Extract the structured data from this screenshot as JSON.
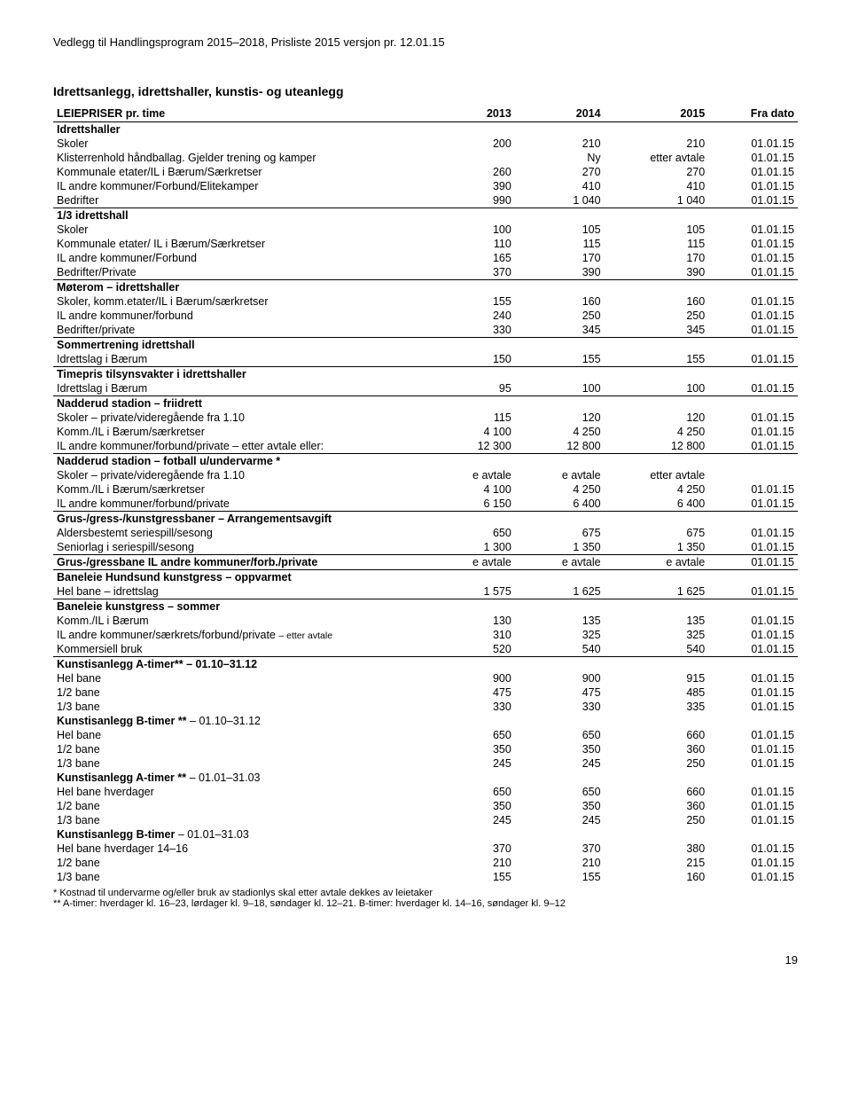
{
  "header": "Vedlegg til Handlingsprogram 2015–2018, Prisliste 2015 versjon pr. 12.01.15",
  "title": "Idrettsanlegg, idrettshaller, kunstis- og uteanlegg",
  "columns": {
    "c0": "LEIEPRISER pr. time",
    "c1": "2013",
    "c2": "2014",
    "c3": "2015",
    "c4": "Fra dato"
  },
  "groups": [
    {
      "header": "Idrettshaller",
      "rows": [
        {
          "label": "Skoler",
          "c1": "200",
          "c2": "210",
          "c3": "210",
          "d": "01.01.15"
        },
        {
          "label": "Klisterrenhold håndballag. Gjelder trening og kamper",
          "c1": "",
          "c2": "Ny",
          "c3": "etter avtale",
          "d": "01.01.15"
        },
        {
          "label": "Kommunale etater/IL i Bærum/Særkretser",
          "c1": "260",
          "c2": "270",
          "c3": "270",
          "d": "01.01.15"
        },
        {
          "label": "IL andre kommuner/Forbund/Elitekamper",
          "c1": "390",
          "c2": "410",
          "c3": "410",
          "d": "01.01.15"
        },
        {
          "label": "Bedrifter",
          "c1": "990",
          "c2": "1 040",
          "c3": "1 040",
          "d": "01.01.15"
        }
      ]
    },
    {
      "header": "1/3 idrettshall",
      "rows": [
        {
          "label": "Skoler",
          "c1": "100",
          "c2": "105",
          "c3": "105",
          "d": "01.01.15"
        },
        {
          "label": "Kommunale etater/ IL i Bærum/Særkretser",
          "c1": "110",
          "c2": "115",
          "c3": "115",
          "d": "01.01.15"
        },
        {
          "label": "IL andre kommuner/Forbund",
          "c1": "165",
          "c2": "170",
          "c3": "170",
          "d": "01.01.15"
        },
        {
          "label": "Bedrifter/Private",
          "c1": "370",
          "c2": "390",
          "c3": "390",
          "d": "01.01.15"
        }
      ]
    },
    {
      "header": "Møterom – idrettshaller",
      "rows": [
        {
          "label": "Skoler, komm.etater/IL i Bærum/særkretser",
          "c1": "155",
          "c2": "160",
          "c3": "160",
          "d": "01.01.15"
        },
        {
          "label": "IL andre kommuner/forbund",
          "c1": "240",
          "c2": "250",
          "c3": "250",
          "d": "01.01.15"
        },
        {
          "label": "Bedrifter/private",
          "c1": "330",
          "c2": "345",
          "c3": "345",
          "d": "01.01.15"
        }
      ]
    },
    {
      "header": "Sommertrening idrettshall",
      "rows": [
        {
          "label": "Idrettslag i Bærum",
          "c1": "150",
          "c2": "155",
          "c3": "155",
          "d": "01.01.15"
        }
      ]
    },
    {
      "header": "Timepris tilsynsvakter i idrettshaller",
      "rows": [
        {
          "label": "Idrettslag i Bærum",
          "c1": "95",
          "c2": "100",
          "c3": "100",
          "d": "01.01.15"
        }
      ]
    },
    {
      "header": "Nadderud stadion – friidrett",
      "rows": [
        {
          "label": "Skoler – private/videregående fra 1.10",
          "c1": "115",
          "c2": "120",
          "c3": "120",
          "d": "01.01.15"
        },
        {
          "label": "Komm./IL i Bærum/særkretser",
          "c1": "4 100",
          "c2": "4 250",
          "c3": "4 250",
          "d": "01.01.15"
        },
        {
          "label": "IL andre kommuner/forbund/private – etter avtale eller:",
          "c1": "12 300",
          "c2": "12 800",
          "c3": "12 800",
          "d": "01.01.15"
        }
      ]
    },
    {
      "header": "Nadderud stadion – fotball u/undervarme *",
      "rows": [
        {
          "label": "Skoler – private/videregående fra 1.10",
          "c1": "e avtale",
          "c2": "e avtale",
          "c3": "etter avtale",
          "d": ""
        },
        {
          "label": "Komm./IL i Bærum/særkretser",
          "c1": "4 100",
          "c2": "4 250",
          "c3": "4 250",
          "d": "01.01.15"
        },
        {
          "label": "IL andre kommuner/forbund/private",
          "c1": "6 150",
          "c2": "6 400",
          "c3": "6 400",
          "d": "01.01.15"
        }
      ]
    },
    {
      "header": "Grus-/gress-/kunstgressbaner – Arrangementsavgift",
      "rows": [
        {
          "label": "Aldersbestemt seriespill/sesong",
          "c1": "650",
          "c2": "675",
          "c3": "675",
          "d": "01.01.15"
        },
        {
          "label": "Seniorlag i seriespill/sesong",
          "c1": "1 300",
          "c2": "1 350",
          "c3": "1 350",
          "d": "01.01.15"
        }
      ]
    },
    {
      "header_html": "<b>Grus-/gressbane</b> IL andre kommuner/forb./private",
      "single": true,
      "rows": [
        {
          "label": "",
          "c1": "e avtale",
          "c2": "e avtale",
          "c3": "e avtale",
          "d": "01.01.15"
        }
      ]
    },
    {
      "header": "Baneleie Hundsund kunstgress – oppvarmet",
      "rows": [
        {
          "label": "Hel bane – idrettslag",
          "c1": "1 575",
          "c2": "1 625",
          "c3": "1 625",
          "d": "01.01.15"
        }
      ]
    },
    {
      "header": "Baneleie kunstgress – sommer",
      "rows": [
        {
          "label": "Komm./IL i Bærum",
          "c1": "130",
          "c2": "135",
          "c3": "135",
          "d": "01.01.15"
        },
        {
          "label_html": "IL andre kommuner/særkrets/forbund/private <span class='small'>– etter avtale</span>",
          "c1": "310",
          "c2": "325",
          "c3": "325",
          "d": "01.01.15"
        },
        {
          "label": "Kommersiell bruk",
          "c1": "520",
          "c2": "540",
          "c3": "540",
          "d": "01.01.15"
        }
      ]
    },
    {
      "header_html": "<b>Kunstisanlegg A-timer**</b> – 01.10–31.12",
      "rows": [
        {
          "label": "Hel bane",
          "c1": "900",
          "c2": "900",
          "c3": "915",
          "d": "01.01.15"
        },
        {
          "label": "1/2 bane",
          "c1": "475",
          "c2": "475",
          "c3": "485",
          "d": "01.01.15"
        },
        {
          "label": "1/3 bane",
          "c1": "330",
          "c2": "330",
          "c3": "335",
          "d": "01.01.15"
        }
      ]
    },
    {
      "header_html": "<b>Kunstisanlegg B-timer **</b> – 01.10–31.12",
      "noRule": true,
      "rows": [
        {
          "label": "Hel bane",
          "c1": "650",
          "c2": "650",
          "c3": "660",
          "d": "01.01.15"
        },
        {
          "label": "1/2 bane",
          "c1": "350",
          "c2": "350",
          "c3": "360",
          "d": "01.01.15"
        },
        {
          "label": "1/3 bane",
          "c1": "245",
          "c2": "245",
          "c3": "250",
          "d": "01.01.15"
        }
      ]
    },
    {
      "header_html": "<b>Kunstisanlegg A-timer **</b> – 01.01–31.03",
      "noRule": true,
      "rows": [
        {
          "label": "Hel bane hverdager",
          "c1": "650",
          "c2": "650",
          "c3": "660",
          "d": "01.01.15"
        },
        {
          "label": "1/2 bane",
          "c1": "350",
          "c2": "350",
          "c3": "360",
          "d": "01.01.15"
        },
        {
          "label": "1/3 bane",
          "c1": "245",
          "c2": "245",
          "c3": "250",
          "d": "01.01.15"
        }
      ]
    },
    {
      "header_html": "<b>Kunstisanlegg B-timer</b> – 01.01–31.03",
      "noRule": true,
      "rows": [
        {
          "label": "Hel bane hverdager 14–16",
          "c1": "370",
          "c2": "370",
          "c3": "380",
          "d": "01.01.15"
        },
        {
          "label": "1/2 bane",
          "c1": "210",
          "c2": "210",
          "c3": "215",
          "d": "01.01.15"
        },
        {
          "label": "1/3 bane",
          "c1": "155",
          "c2": "155",
          "c3": "160",
          "d": "01.01.15"
        }
      ]
    }
  ],
  "footnotes": [
    "* Kostnad til undervarme og/eller bruk av stadionlys skal etter avtale dekkes av leietaker",
    "** A-timer: hverdager kl. 16–23, lørdager kl. 9–18, søndager kl. 12–21.  B-timer: hverdager kl. 14–16, søndager kl. 9–12"
  ],
  "pagenum": "19"
}
